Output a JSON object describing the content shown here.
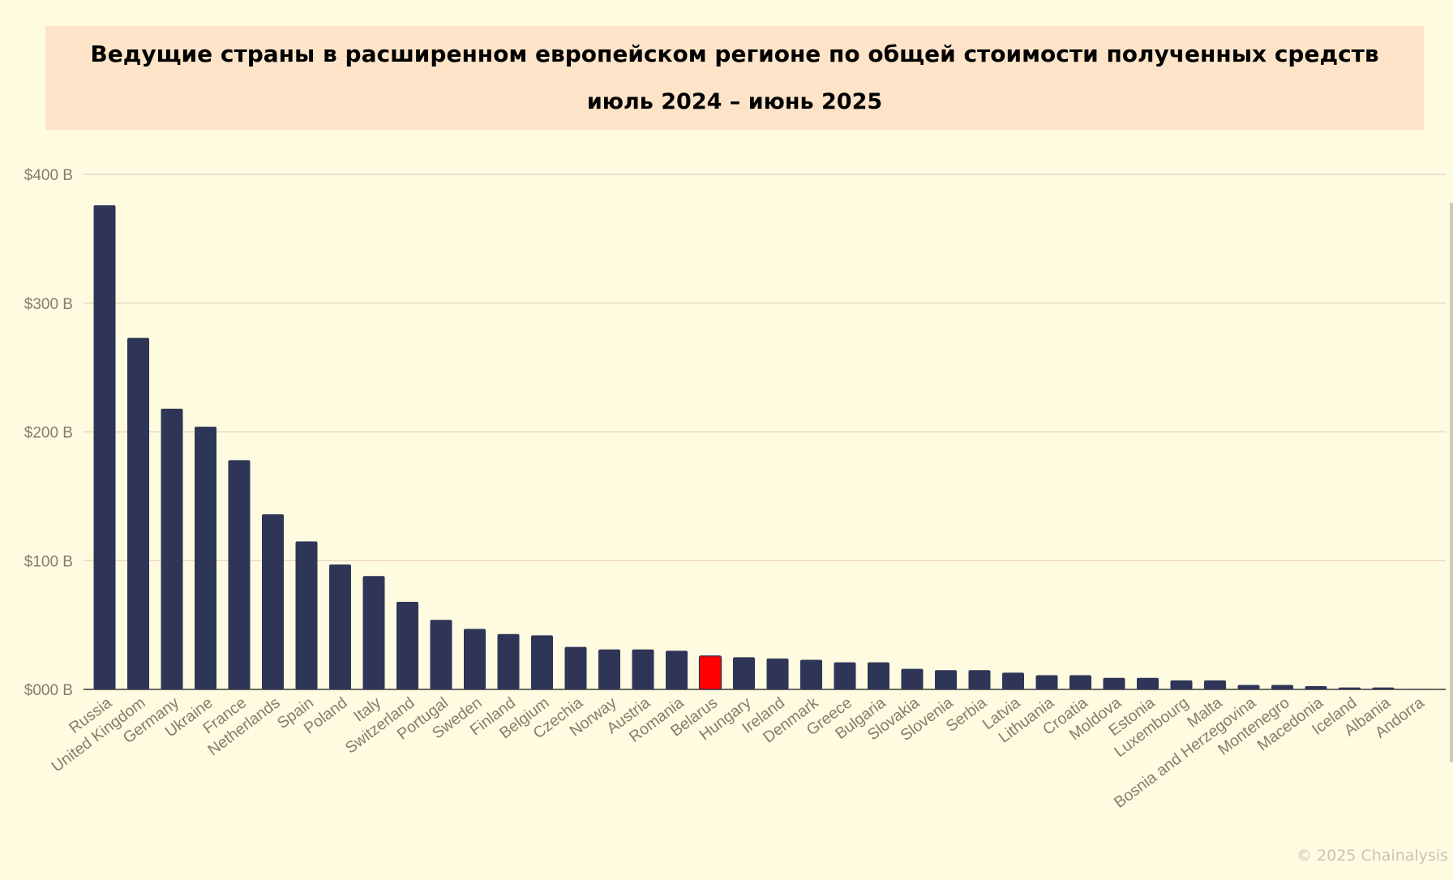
{
  "title": "Ведущие страны в расширенном европейском регионе по общей стоимости полученных средств",
  "subtitle": "июль 2024 – июнь 2025",
  "credit": "© 2025 Chainalysis",
  "colors": {
    "background": "#fefbe0",
    "title_background": "#fde4c8",
    "bar": "#2f3556",
    "highlight": "#ff0000",
    "grid": "#ead6c4",
    "axis_text": "#8a7a6a"
  },
  "chart_data": {
    "type": "bar",
    "title": "Ведущие страны в расширенном европейском регионе по общей стоимости полученных средств",
    "subtitle": "июль 2024 – июнь 2025",
    "xlabel": "",
    "ylabel": "",
    "ylim": [
      0,
      400
    ],
    "y_ticks": [
      {
        "value": 0,
        "label": "$000 B"
      },
      {
        "value": 100,
        "label": "$100 B"
      },
      {
        "value": 200,
        "label": "$200 B"
      },
      {
        "value": 300,
        "label": "$300 B"
      },
      {
        "value": 400,
        "label": "$400 B"
      }
    ],
    "grid": true,
    "legend": "none",
    "highlight_category": "Belarus",
    "categories": [
      "Russia",
      "United Kingdom",
      "Germany",
      "Ukraine",
      "France",
      "Netherlands",
      "Spain",
      "Poland",
      "Italy",
      "Switzerland",
      "Portugal",
      "Sweden",
      "Finland",
      "Belgium",
      "Czechia",
      "Norway",
      "Austria",
      "Romania",
      "Belarus",
      "Hungary",
      "Ireland",
      "Denmark",
      "Greece",
      "Bulgaria",
      "Slovakia",
      "Slovenia",
      "Serbia",
      "Latvia",
      "Lithuania",
      "Croatia",
      "Moldova",
      "Estonia",
      "Luxembourg",
      "Malta",
      "Bosnia and Herzegovina",
      "Montenegro",
      "Macedonia",
      "Iceland",
      "Albania",
      "Andorra"
    ],
    "values": [
      376,
      273,
      218,
      204,
      178,
      136,
      115,
      97,
      88,
      68,
      54,
      47,
      43,
      42,
      33,
      31,
      31,
      30,
      26,
      25,
      24,
      23,
      21,
      21,
      16,
      15,
      15,
      13,
      11,
      11,
      9,
      9,
      7,
      7,
      3.5,
      3.5,
      2.5,
      1.5,
      1.5,
      0.3
    ]
  }
}
